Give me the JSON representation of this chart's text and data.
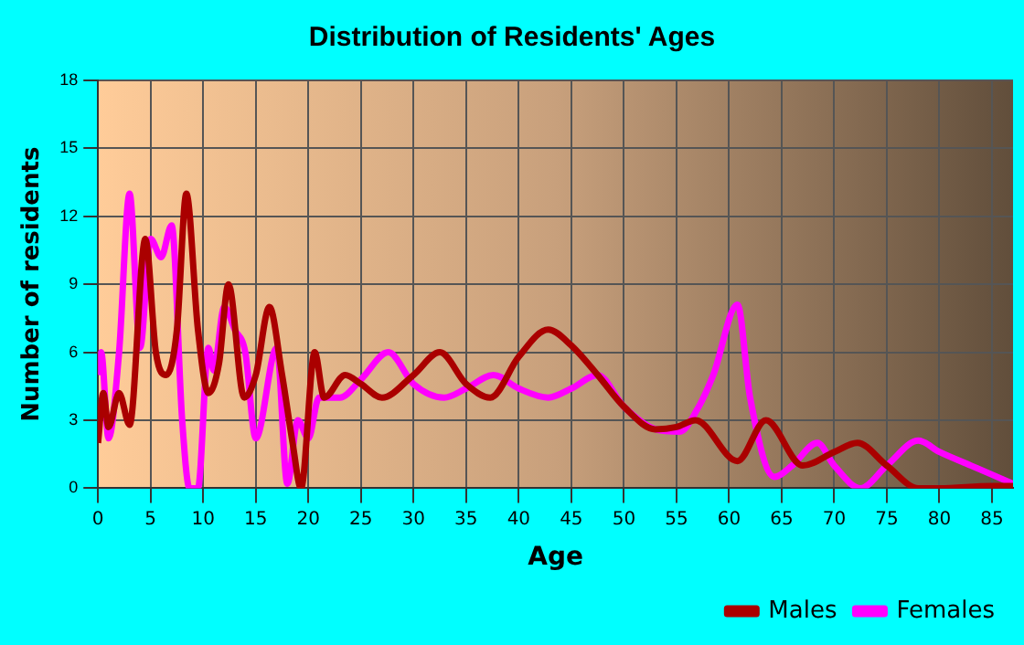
{
  "chart_data": {
    "type": "line",
    "title": "Distribution of Residents' Ages",
    "xlabel": "Age",
    "ylabel": "Number of residents",
    "xlim": [
      0,
      87
    ],
    "xticks": [
      0,
      5,
      10,
      15,
      20,
      25,
      30,
      35,
      40,
      45,
      50,
      55,
      60,
      65,
      70,
      75,
      80,
      85
    ],
    "ylim": [
      0,
      18
    ],
    "yticks": [
      0,
      3,
      6,
      9,
      12,
      15,
      18
    ],
    "grid": true,
    "legend": "bottom right",
    "marker": "none",
    "line_style": "solid",
    "series": [
      {
        "name": "Males",
        "color": "#aa0000",
        "x": [
          0,
          0.5,
          1,
          2,
          3,
          4.5,
          5.5,
          6.5,
          7.5,
          8.4,
          9.5,
          10.5,
          11.5,
          12.4,
          13.9,
          15,
          16.3,
          17.5,
          18.5,
          19.3,
          20.6,
          21.5,
          23.5,
          25,
          27,
          30,
          32.5,
          35,
          37.3,
          40,
          42.8,
          45,
          47.5,
          50,
          53,
          55,
          56.8,
          60.8,
          63.5,
          67,
          70,
          72.2,
          75,
          78,
          80,
          85,
          87
        ],
        "values": [
          2,
          4.2,
          2.7,
          4.2,
          2.8,
          11,
          6,
          5,
          7,
          13,
          7,
          4.2,
          5.5,
          9,
          4,
          5,
          8,
          5,
          2,
          0,
          6,
          4,
          5,
          4.6,
          4,
          5,
          6,
          4.6,
          4,
          5.8,
          7,
          6.3,
          5,
          3.6,
          2.6,
          2.7,
          3,
          1.2,
          3,
          1,
          1.6,
          2,
          1,
          0,
          0,
          0.1,
          0.1
        ]
      },
      {
        "name": "Females",
        "color": "#ff00ff",
        "x": [
          0,
          0.3,
          1,
          2,
          3,
          4,
          5,
          6,
          7,
          8,
          8.7,
          9.5,
          10.5,
          11,
          12,
          13,
          14,
          15,
          17,
          18,
          19,
          20,
          21,
          23,
          25,
          27.6,
          30,
          32.9,
          35,
          37.6,
          40,
          42.8,
          45,
          47.5,
          50,
          53,
          55.3,
          57,
          58.5,
          60.8,
          62,
          64.3,
          66,
          68.4,
          70,
          72.5,
          75,
          78,
          80,
          83,
          87
        ],
        "values": [
          5,
          6,
          2.2,
          6,
          13,
          6.2,
          11,
          10.2,
          11.6,
          3,
          0,
          0,
          6.2,
          5.2,
          8,
          7,
          6,
          2.2,
          6.2,
          0.2,
          3,
          2.2,
          4,
          4,
          4.8,
          6,
          4.6,
          4,
          4.4,
          5,
          4.4,
          4,
          4.4,
          5,
          3.6,
          2.6,
          2.5,
          3.5,
          5,
          8.1,
          4,
          0.5,
          1,
          2,
          1,
          0,
          1,
          2.1,
          1.6,
          1,
          0.2
        ]
      }
    ]
  }
}
